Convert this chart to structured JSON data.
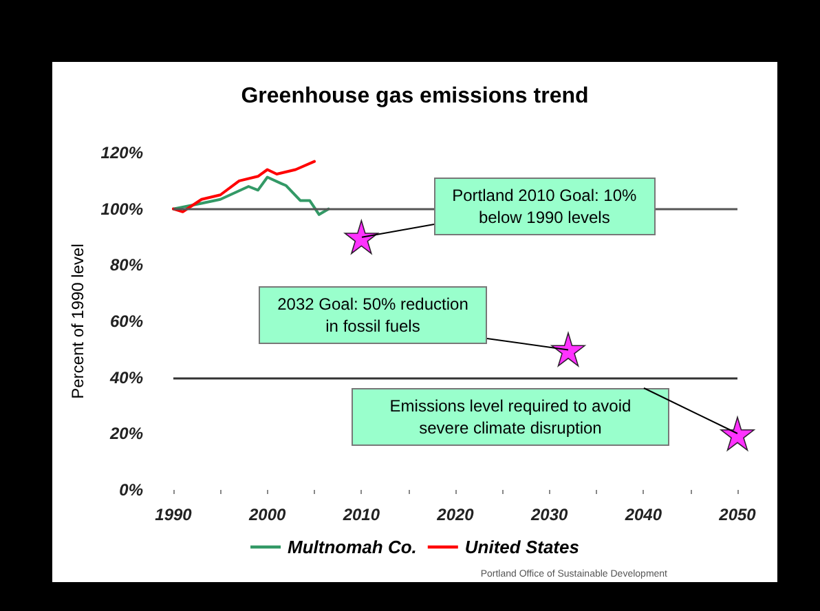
{
  "chart_data": {
    "type": "line",
    "title": "Greenhouse gas emissions trend",
    "ylabel": "Percent of 1990 level",
    "series": [
      {
        "name": "Multnomah Co.",
        "color": "#339966",
        "x": [
          1990,
          1993,
          1995,
          1998,
          1999,
          2000,
          2001.5,
          2002,
          2003.5,
          2004.5,
          2005.5,
          2006.5
        ],
        "values": [
          100,
          102,
          103.4,
          108,
          106.7,
          111.3,
          109,
          108.3,
          103,
          103,
          98,
          100
        ]
      },
      {
        "name": "United States",
        "color": "#ff0000",
        "x": [
          1990,
          1991,
          1993,
          1995,
          1997,
          1999,
          2000,
          2001,
          2003,
          2005
        ],
        "values": [
          100,
          99,
          103.4,
          105,
          110,
          111.6,
          114,
          112.4,
          114,
          116.9
        ]
      },
      {
        "type": "scatter",
        "color": "#ff00ff",
        "marker": "star",
        "x": [
          2010,
          2032,
          2050
        ],
        "values": [
          90,
          50,
          20
        ]
      }
    ],
    "xlim": [
      1990,
      2050
    ],
    "xticks": [
      1990,
      {
        "value": 1995,
        "label": null
      },
      2000,
      {
        "value": 2005,
        "label": null
      },
      2010,
      {
        "value": 2015,
        "label": null
      },
      2020,
      {
        "value": 2025,
        "label": null
      },
      2030,
      {
        "value": 2035,
        "label": null
      },
      2040,
      {
        "value": 2045,
        "label": null
      },
      2050
    ],
    "ylim": [
      0,
      120
    ],
    "yticks": [
      {
        "value": 0,
        "label": "0%"
      },
      {
        "value": 20,
        "label": "20%"
      },
      {
        "value": 40,
        "label": "40%"
      },
      {
        "value": 60,
        "label": "60%"
      },
      {
        "value": 80,
        "label": "80%"
      },
      {
        "value": 100,
        "label": "100%"
      },
      {
        "value": 120,
        "label": "120%"
      }
    ],
    "ref_lines": [
      {
        "axis": "y",
        "value": 100,
        "color": "#555555"
      },
      {
        "axis": "y",
        "value": 40,
        "color": "#333333"
      }
    ],
    "annotations": [
      {
        "text": "Portland 2010 Goal: 10% below 1990 levels",
        "x": 2010,
        "y": 90
      },
      {
        "text": "2032 Goal: 50% reduction in fossil fuels",
        "x": 2032,
        "y": 50
      },
      {
        "text": "Emissions level required to avoid severe climate disruption",
        "x": 2050,
        "y": 20
      },
      "Portland Office of Sustainable Development"
    ],
    "legend": "bottom",
    "grid": false,
    "line_style": "solid",
    "marker": "none"
  }
}
